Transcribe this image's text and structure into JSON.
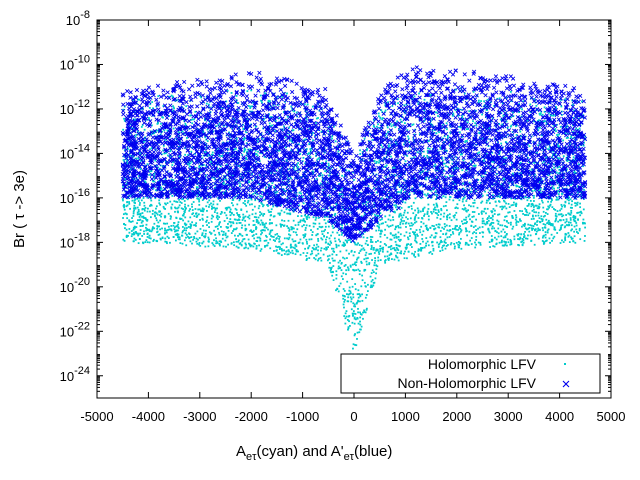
{
  "chart_data": {
    "type": "scatter",
    "title": "",
    "xlabel": {
      "base_1": "A",
      "sub_1": "eτ",
      "mid": "(cyan) and A'",
      "sub_2": "eτ",
      "end": "(blue)"
    },
    "ylabel": "Br ( τ -> 3e)",
    "xlim": [
      -5000,
      5000
    ],
    "ylim": [
      1e-25,
      1e-08
    ],
    "yscale": "log",
    "grid": false,
    "legend_position": "bottom-right",
    "x_ticks": [
      "-5000",
      "-4000",
      "-3000",
      "-2000",
      "-1000",
      "0",
      "1000",
      "2000",
      "3000",
      "4000",
      "5000"
    ],
    "y_ticks": [
      {
        "base": "10",
        "exp": "-8"
      },
      {
        "base": "10",
        "exp": "-10"
      },
      {
        "base": "10",
        "exp": "-12"
      },
      {
        "base": "10",
        "exp": "-14"
      },
      {
        "base": "10",
        "exp": "-16"
      },
      {
        "base": "10",
        "exp": "-18"
      },
      {
        "base": "10",
        "exp": "-20"
      },
      {
        "base": "10",
        "exp": "-22"
      },
      {
        "base": "10",
        "exp": "-24"
      }
    ],
    "series": [
      {
        "name": "Holomorphic LFV",
        "color": "#00cccc",
        "marker": "dot",
        "x_range": [
          -4500,
          4500
        ],
        "description_points": [
          {
            "x": -4500,
            "y_min": 1e-18,
            "y_max": 3e-12
          },
          {
            "x": -2000,
            "y_min": 5e-19,
            "y_max": 1e-11
          },
          {
            "x": -500,
            "y_min": 1e-19,
            "y_max": 3e-12
          },
          {
            "x": 0,
            "y_min": 1e-23,
            "y_max": 1e-14
          },
          {
            "x": 500,
            "y_min": 1e-19,
            "y_max": 3e-12
          },
          {
            "x": 2000,
            "y_min": 5e-19,
            "y_max": 1e-11
          },
          {
            "x": 4500,
            "y_min": 1e-18,
            "y_max": 3e-12
          }
        ]
      },
      {
        "name": "Non-Holomorphic LFV",
        "color": "#0000ee",
        "marker": "x",
        "x_range": [
          -4500,
          4500
        ],
        "description_points": [
          {
            "x": -4500,
            "y_min": 1e-16,
            "y_max": 1e-11
          },
          {
            "x": -2000,
            "y_min": 1e-16,
            "y_max": 5e-11
          },
          {
            "x": -500,
            "y_min": 1e-17,
            "y_max": 1e-11
          },
          {
            "x": 0,
            "y_min": 1e-18,
            "y_max": 1e-14
          },
          {
            "x": 500,
            "y_min": 1e-17,
            "y_max": 1e-11
          },
          {
            "x": 1200,
            "y_min": 1e-16,
            "y_max": 1.2e-10
          },
          {
            "x": 4500,
            "y_min": 1e-16,
            "y_max": 1e-11
          }
        ]
      }
    ]
  }
}
